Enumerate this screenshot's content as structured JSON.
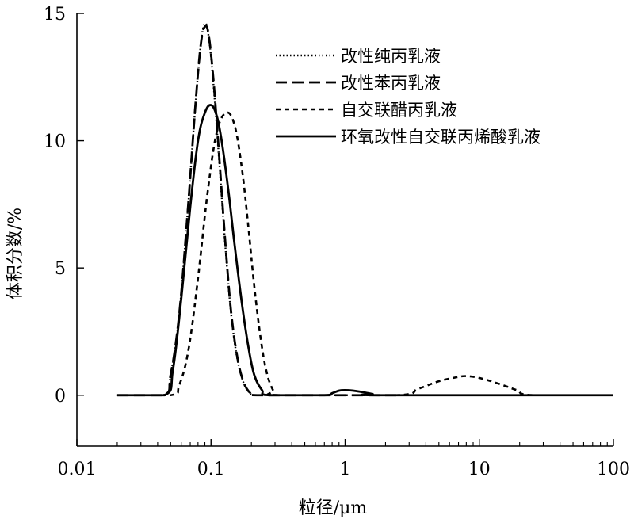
{
  "chart_data": {
    "type": "line",
    "xlabel": "粒径/μm",
    "ylabel": "体积分数/%",
    "xscale": "log",
    "xlim": [
      0.01,
      100
    ],
    "ylim": [
      -2,
      15
    ],
    "x_ticks": [
      "0.01",
      "0.1",
      "1",
      "10",
      "100"
    ],
    "x_tick_values": [
      0.01,
      0.1,
      1,
      10,
      100
    ],
    "y_ticks": [
      "0",
      "5",
      "10",
      "15"
    ],
    "y_tick_values": [
      0,
      5,
      10,
      15
    ],
    "grid": false,
    "legend_position": "top-right",
    "series": [
      {
        "name": "改性纯丙乳液",
        "style": "dotted",
        "points": [
          [
            0.02,
            0
          ],
          [
            0.044,
            0
          ],
          [
            0.05,
            0.8
          ],
          [
            0.058,
            3.2
          ],
          [
            0.067,
            7.2
          ],
          [
            0.076,
            11.2
          ],
          [
            0.084,
            13.8
          ],
          [
            0.09,
            14.6
          ],
          [
            0.096,
            14.1
          ],
          [
            0.104,
            12.3
          ],
          [
            0.114,
            9.5
          ],
          [
            0.126,
            6.3
          ],
          [
            0.14,
            3.4
          ],
          [
            0.155,
            1.6
          ],
          [
            0.172,
            0.6
          ],
          [
            0.19,
            0.15
          ],
          [
            0.21,
            0
          ],
          [
            0.27,
            0
          ]
        ]
      },
      {
        "name": "改性苯丙乳液",
        "style": "long-dash",
        "points": [
          [
            0.02,
            0
          ],
          [
            0.044,
            0
          ],
          [
            0.05,
            0.8
          ],
          [
            0.058,
            3.2
          ],
          [
            0.067,
            7.2
          ],
          [
            0.076,
            11.2
          ],
          [
            0.084,
            13.8
          ],
          [
            0.091,
            14.5
          ],
          [
            0.097,
            14.0
          ],
          [
            0.105,
            12.2
          ],
          [
            0.115,
            9.4
          ],
          [
            0.127,
            6.2
          ],
          [
            0.141,
            3.3
          ],
          [
            0.157,
            1.5
          ],
          [
            0.174,
            0.55
          ],
          [
            0.195,
            0.1
          ],
          [
            0.22,
            0
          ],
          [
            0.8,
            0
          ],
          [
            1.2,
            0
          ],
          [
            2.5,
            0
          ]
        ]
      },
      {
        "name": "自交联醋丙乳液",
        "style": "short-dash",
        "points": [
          [
            0.02,
            0
          ],
          [
            0.05,
            0
          ],
          [
            0.058,
            0.4
          ],
          [
            0.068,
            1.8
          ],
          [
            0.08,
            4.6
          ],
          [
            0.094,
            7.9
          ],
          [
            0.11,
            10.3
          ],
          [
            0.13,
            11.1
          ],
          [
            0.15,
            10.6
          ],
          [
            0.17,
            8.9
          ],
          [
            0.19,
            6.6
          ],
          [
            0.21,
            4.3
          ],
          [
            0.235,
            2.2
          ],
          [
            0.26,
            0.9
          ],
          [
            0.29,
            0.2
          ],
          [
            0.32,
            0
          ],
          [
            2.4,
            0
          ],
          [
            3.5,
            0.25
          ],
          [
            5,
            0.55
          ],
          [
            7,
            0.72
          ],
          [
            8,
            0.75
          ],
          [
            10,
            0.68
          ],
          [
            14,
            0.45
          ],
          [
            19,
            0.2
          ],
          [
            25,
            0
          ],
          [
            100,
            0
          ]
        ]
      },
      {
        "name": "环氧改性自交联丙烯酸乳液",
        "style": "solid",
        "points": [
          [
            0.02,
            0
          ],
          [
            0.045,
            0
          ],
          [
            0.052,
            1.0
          ],
          [
            0.06,
            3.8
          ],
          [
            0.07,
            7.4
          ],
          [
            0.08,
            10.0
          ],
          [
            0.09,
            11.1
          ],
          [
            0.1,
            11.4
          ],
          [
            0.11,
            11.0
          ],
          [
            0.12,
            10.0
          ],
          [
            0.135,
            8.0
          ],
          [
            0.15,
            5.9
          ],
          [
            0.17,
            3.6
          ],
          [
            0.19,
            1.9
          ],
          [
            0.21,
            0.8
          ],
          [
            0.24,
            0.2
          ],
          [
            0.27,
            0
          ],
          [
            0.7,
            0
          ],
          [
            0.8,
            0.08
          ],
          [
            0.9,
            0.18
          ],
          [
            1.0,
            0.2
          ],
          [
            1.15,
            0.18
          ],
          [
            1.35,
            0.12
          ],
          [
            1.6,
            0.05
          ],
          [
            1.9,
            0
          ],
          [
            100,
            0
          ]
        ]
      }
    ]
  }
}
